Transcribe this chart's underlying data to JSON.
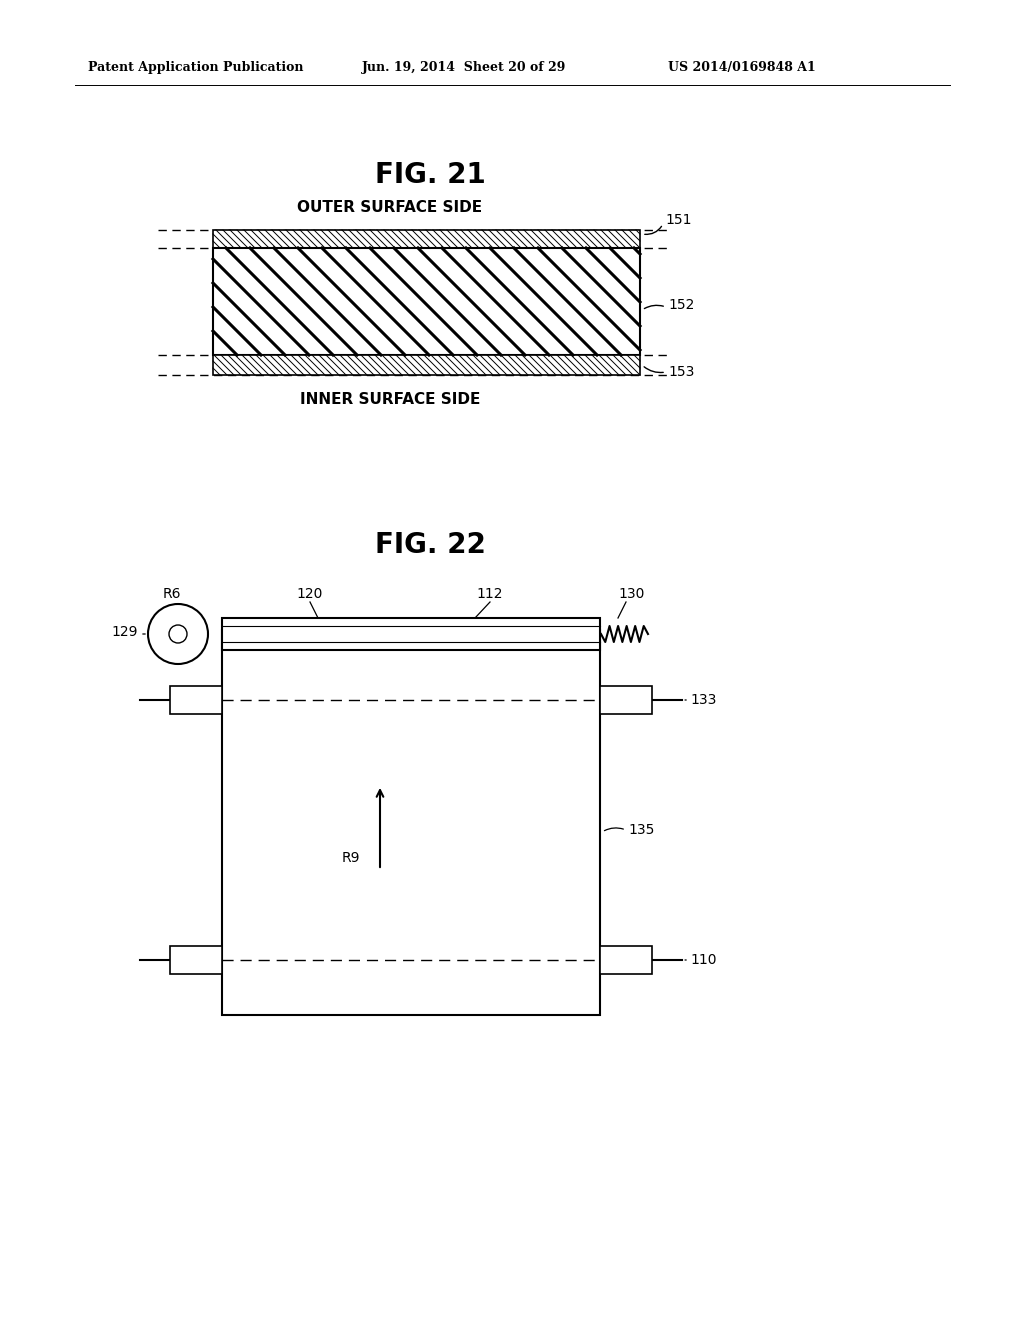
{
  "bg_color": "#ffffff",
  "header_left": "Patent Application Publication",
  "header_mid": "Jun. 19, 2014  Sheet 20 of 29",
  "header_right": "US 2014/0169848 A1",
  "fig21_title": "FIG. 21",
  "fig22_title": "FIG. 22",
  "outer_surface_label": "OUTER SURFACE SIDE",
  "inner_surface_label": "INNER SURFACE SIDE",
  "label_151": "151",
  "label_152": "152",
  "label_153": "153",
  "label_120": "120",
  "label_112": "112",
  "label_130": "130",
  "label_129": "129",
  "label_133": "133",
  "label_135": "135",
  "label_110": "110",
  "label_R6": "R6",
  "label_R9": "R9"
}
